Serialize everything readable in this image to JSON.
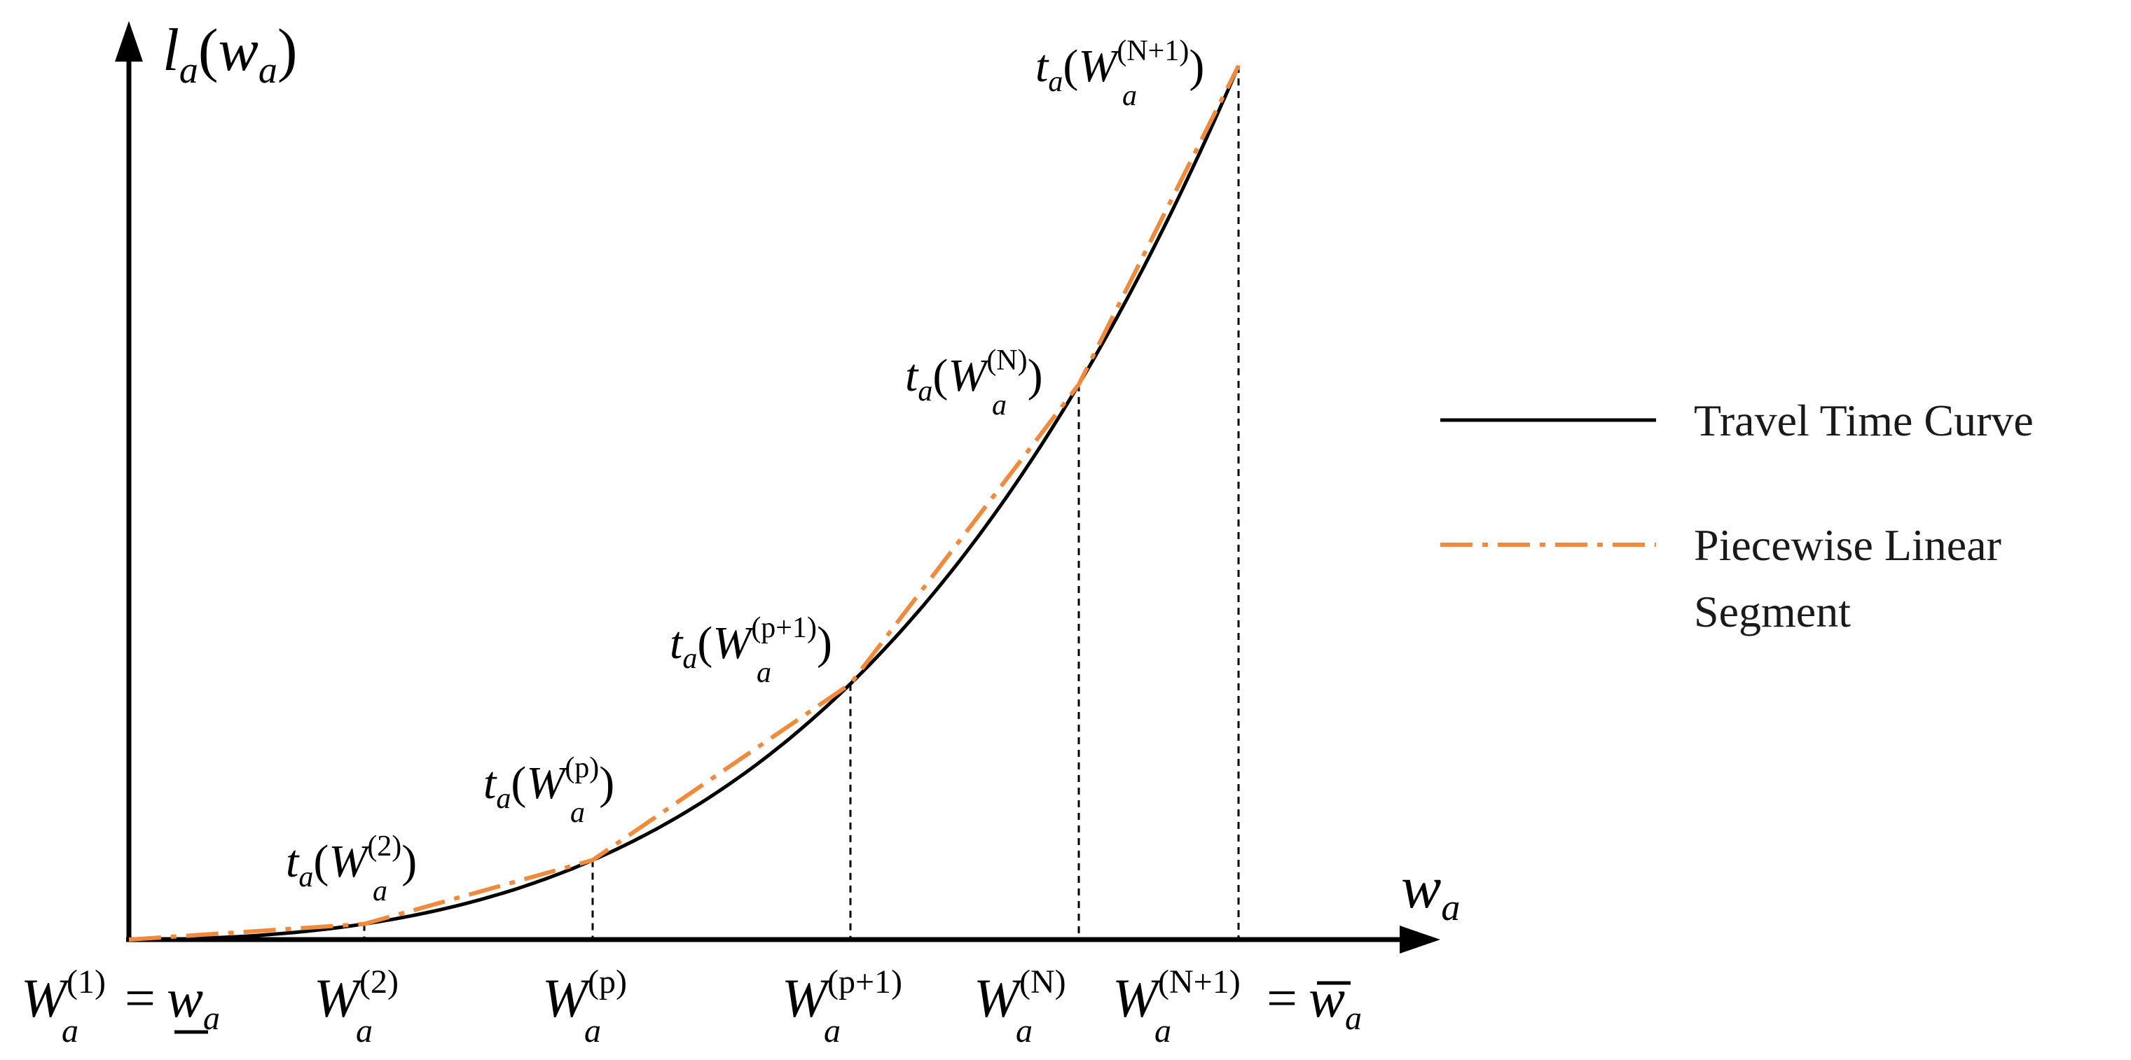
{
  "axes": {
    "y_label": {
      "base": "l",
      "sub": "a",
      "arg_base": "w",
      "arg_sub": "a"
    },
    "x_label": {
      "base": "w",
      "sub": "a"
    }
  },
  "x_ticks": [
    {
      "base": "W",
      "sub": "a",
      "sup": "(1)",
      "suffix_op": "=",
      "suffix_base": "w",
      "suffix_sub": "a",
      "suffix_mark": "underline"
    },
    {
      "base": "W",
      "sub": "a",
      "sup": "(2)"
    },
    {
      "base": "W",
      "sub": "a",
      "sup": "(p)"
    },
    {
      "base": "W",
      "sub": "a",
      "sup": "(p+1)"
    },
    {
      "base": "W",
      "sub": "a",
      "sup": "(N)"
    },
    {
      "base": "W",
      "sub": "a",
      "sup": "(N+1)",
      "suffix_op": "=",
      "suffix_base": "w",
      "suffix_sub": "a",
      "suffix_mark": "overline"
    }
  ],
  "point_labels": [
    {
      "fn": "t",
      "fn_sub": "a",
      "base": "W",
      "sub": "a",
      "sup": "(2)"
    },
    {
      "fn": "t",
      "fn_sub": "a",
      "base": "W",
      "sub": "a",
      "sup": "(p)"
    },
    {
      "fn": "t",
      "fn_sub": "a",
      "base": "W",
      "sub": "a",
      "sup": "(p+1)"
    },
    {
      "fn": "t",
      "fn_sub": "a",
      "base": "W",
      "sub": "a",
      "sup": "(N)"
    },
    {
      "fn": "t",
      "fn_sub": "a",
      "base": "W",
      "sub": "a",
      "sup": "(N+1)"
    }
  ],
  "legend": {
    "placement": "right",
    "items": [
      {
        "lines": [
          "Travel Time Curve"
        ],
        "style": "solid",
        "color": "#000000"
      },
      {
        "lines": [
          "Piecewise Linear",
          "Segment"
        ],
        "style": "dash-dot",
        "color": "#f08a3c"
      }
    ]
  },
  "colors": {
    "curve": "#000000",
    "segment": "#f08a3c",
    "axis": "#000000"
  }
}
